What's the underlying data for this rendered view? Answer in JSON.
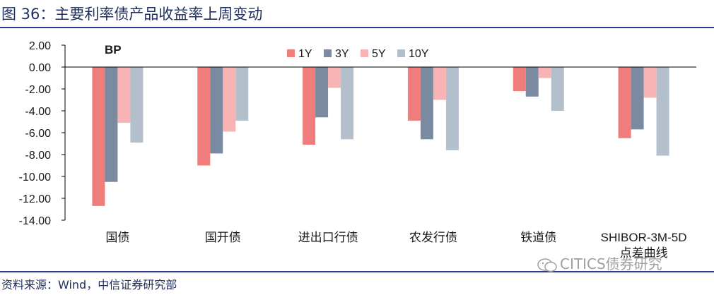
{
  "figure": {
    "title": "图 36：主要利率债产品收益率上周变动",
    "source": "资料来源：Wind，中信证券研究部",
    "watermark": "CITICS债券研究"
  },
  "chart_data": {
    "type": "bar",
    "unit_label": "BP",
    "categories": [
      "国债",
      "国开债",
      "进出口行债",
      "农发行债",
      "铁道债",
      "SHIBOR-3M-5D点差曲线"
    ],
    "series": [
      {
        "name": "1Y",
        "color": "#f07c7c",
        "values": [
          -12.7,
          -9.0,
          -7.1,
          -4.9,
          -2.2,
          -6.5
        ]
      },
      {
        "name": "3Y",
        "color": "#7a8aa0",
        "values": [
          -10.5,
          -7.9,
          -4.6,
          -6.6,
          -2.7,
          -5.7
        ]
      },
      {
        "name": "5Y",
        "color": "#f8b4b4",
        "values": [
          -5.1,
          -5.9,
          -1.9,
          -3.0,
          -1.0,
          -2.8
        ]
      },
      {
        "name": "10Y",
        "color": "#b4bfcc",
        "values": [
          -6.9,
          -4.9,
          -6.6,
          -7.6,
          -4.0,
          -8.1
        ]
      }
    ],
    "ylim": [
      -14,
      2
    ],
    "yticks": [
      "2.00",
      "0.00",
      "-2.00",
      "-4.00",
      "-6.00",
      "-8.00",
      "-10.00",
      "-12.00",
      "-14.00"
    ],
    "legend_position": "top-center",
    "grid": false
  }
}
